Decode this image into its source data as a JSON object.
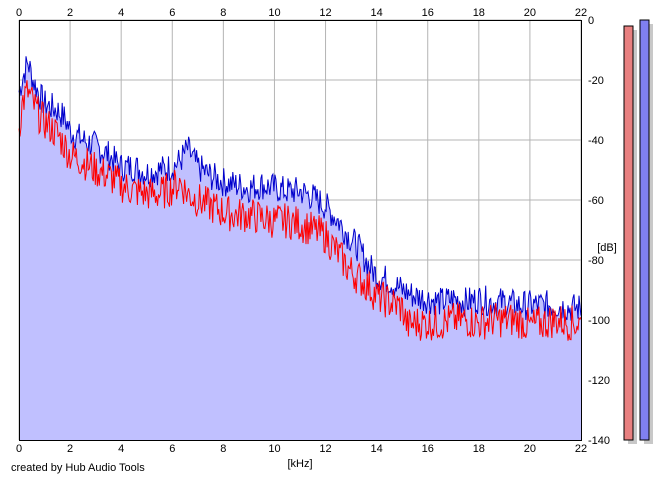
{
  "chart_data": {
    "type": "area",
    "xlabel": "[kHz]",
    "ylabel": "[dB]",
    "xlim": [
      0,
      22
    ],
    "ylim": [
      -140,
      0
    ],
    "x_ticks": [
      0,
      2,
      4,
      6,
      8,
      10,
      12,
      14,
      16,
      18,
      20,
      22
    ],
    "y_ticks": [
      0,
      -20,
      -40,
      -60,
      -80,
      -100,
      -120,
      -140
    ],
    "grid": true,
    "series": [
      {
        "channel": "blue",
        "color": "#0000cc",
        "fill": "#c0c0ff",
        "x": [
          0,
          0.15,
          0.35,
          0.55,
          0.8,
          1.0,
          1.5,
          1.8,
          2.0,
          2.5,
          3.0,
          3.5,
          4.0,
          4.5,
          5.0,
          5.5,
          6.0,
          6.3,
          6.6,
          7.0,
          7.5,
          8.0,
          8.5,
          9.0,
          9.5,
          10.0,
          10.5,
          11.0,
          11.5,
          12.0,
          12.5,
          12.9,
          13.3,
          13.7,
          14.0,
          14.5,
          15.0,
          15.5,
          16.0,
          16.5,
          17.0,
          17.5,
          18.0,
          18.5,
          19.0,
          19.5,
          20.0,
          20.5,
          21.0,
          21.5,
          22.0
        ],
        "y": [
          -24,
          -19,
          -14,
          -20,
          -25,
          -28,
          -30,
          -33,
          -37,
          -40,
          -42,
          -45,
          -49,
          -49,
          -51,
          -50,
          -49,
          -47,
          -43,
          -49,
          -52,
          -54,
          -55,
          -56,
          -55,
          -56,
          -57,
          -57,
          -59,
          -62,
          -67,
          -72,
          -76,
          -82,
          -85,
          -87,
          -90,
          -92,
          -93,
          -94,
          -93,
          -94,
          -93,
          -94,
          -94,
          -95,
          -95,
          -95,
          -95,
          -96,
          -96
        ]
      },
      {
        "channel": "red",
        "color": "#ff0000",
        "x": [
          0,
          0.15,
          0.35,
          0.55,
          0.8,
          1.0,
          1.5,
          1.8,
          2.0,
          2.5,
          3.0,
          3.5,
          4.0,
          4.5,
          5.0,
          5.5,
          6.0,
          6.3,
          6.6,
          7.0,
          7.5,
          8.0,
          8.5,
          9.0,
          9.5,
          10.0,
          10.5,
          11.0,
          11.5,
          12.0,
          12.5,
          12.9,
          13.3,
          13.7,
          14.0,
          14.5,
          15.0,
          15.2,
          15.5,
          16.0,
          16.5,
          17.0,
          17.5,
          18.0,
          18.5,
          19.0,
          19.5,
          20.0,
          20.5,
          21.0,
          21.5,
          22.0
        ],
        "y": [
          -36,
          -27,
          -24,
          -28,
          -32,
          -34,
          -38,
          -42,
          -45,
          -47,
          -50,
          -52,
          -55,
          -57,
          -58,
          -58,
          -56,
          -54,
          -58,
          -60,
          -62,
          -64,
          -65,
          -65,
          -66,
          -67,
          -67,
          -68,
          -70,
          -72,
          -78,
          -83,
          -86,
          -89,
          -92,
          -94,
          -96,
          -102,
          -101,
          -101,
          -101,
          -100,
          -100,
          -101,
          -100,
          -100,
          -100,
          -102,
          -101,
          -100,
          -101,
          -101
        ]
      }
    ],
    "level_meters": [
      {
        "channel": "red",
        "color": "#e88080",
        "value_db": -2
      },
      {
        "channel": "blue",
        "color": "#8080f0",
        "value_db": 0
      }
    ]
  },
  "footer": {
    "credit": "created by Hub Audio Tools"
  }
}
